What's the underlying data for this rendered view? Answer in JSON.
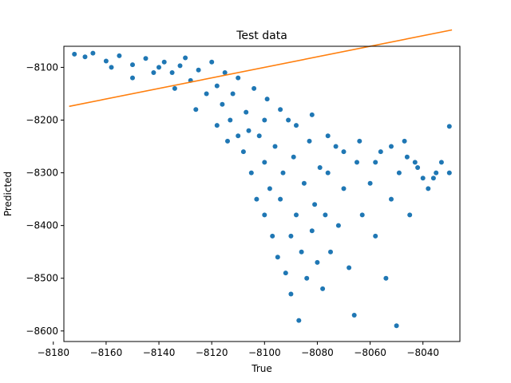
{
  "chart_data": {
    "type": "scatter",
    "title": "Test data",
    "xlabel": "True",
    "ylabel": "Predicted",
    "xlim": [
      -8176,
      -8026
    ],
    "ylim": [
      -8620,
      -8060
    ],
    "xticks": [
      -8180,
      -8160,
      -8140,
      -8120,
      -8100,
      -8080,
      -8060,
      -8040
    ],
    "yticks": [
      -8100,
      -8200,
      -8300,
      -8400,
      -8500,
      -8600
    ],
    "grid": false,
    "colors": {
      "points": "#1f77b4",
      "line": "#ff7f0e"
    },
    "series": [
      {
        "type": "scatter",
        "points": [
          [
            -8172,
            -8075
          ],
          [
            -8168,
            -8080
          ],
          [
            -8165,
            -8073
          ],
          [
            -8160,
            -8088
          ],
          [
            -8155,
            -8078
          ],
          [
            -8150,
            -8095
          ],
          [
            -8145,
            -8083
          ],
          [
            -8140,
            -8100
          ],
          [
            -8138,
            -8090
          ],
          [
            -8135,
            -8110
          ],
          [
            -8132,
            -8097
          ],
          [
            -8130,
            -8082
          ],
          [
            -8128,
            -8125
          ],
          [
            -8125,
            -8105
          ],
          [
            -8122,
            -8150
          ],
          [
            -8120,
            -8090
          ],
          [
            -8118,
            -8135
          ],
          [
            -8116,
            -8170
          ],
          [
            -8115,
            -8110
          ],
          [
            -8113,
            -8200
          ],
          [
            -8112,
            -8150
          ],
          [
            -8110,
            -8230
          ],
          [
            -8110,
            -8120
          ],
          [
            -8108,
            -8260
          ],
          [
            -8107,
            -8185
          ],
          [
            -8105,
            -8300
          ],
          [
            -8104,
            -8140
          ],
          [
            -8103,
            -8350
          ],
          [
            -8102,
            -8230
          ],
          [
            -8100,
            -8280
          ],
          [
            -8100,
            -8380
          ],
          [
            -8099,
            -8160
          ],
          [
            -8098,
            -8330
          ],
          [
            -8097,
            -8420
          ],
          [
            -8096,
            -8250
          ],
          [
            -8095,
            -8460
          ],
          [
            -8094,
            -8350
          ],
          [
            -8093,
            -8300
          ],
          [
            -8092,
            -8490
          ],
          [
            -8091,
            -8200
          ],
          [
            -8090,
            -8420
          ],
          [
            -8090,
            -8530
          ],
          [
            -8089,
            -8270
          ],
          [
            -8088,
            -8380
          ],
          [
            -8087,
            -8580
          ],
          [
            -8086,
            -8450
          ],
          [
            -8085,
            -8320
          ],
          [
            -8084,
            -8500
          ],
          [
            -8083,
            -8240
          ],
          [
            -8082,
            -8410
          ],
          [
            -8081,
            -8360
          ],
          [
            -8080,
            -8470
          ],
          [
            -8079,
            -8290
          ],
          [
            -8078,
            -8520
          ],
          [
            -8077,
            -8380
          ],
          [
            -8076,
            -8300
          ],
          [
            -8075,
            -8450
          ],
          [
            -8073,
            -8250
          ],
          [
            -8072,
            -8400
          ],
          [
            -8070,
            -8330
          ],
          [
            -8068,
            -8480
          ],
          [
            -8066,
            -8570
          ],
          [
            -8065,
            -8280
          ],
          [
            -8063,
            -8380
          ],
          [
            -8060,
            -8320
          ],
          [
            -8058,
            -8420
          ],
          [
            -8056,
            -8260
          ],
          [
            -8054,
            -8500
          ],
          [
            -8052,
            -8350
          ],
          [
            -8050,
            -8590
          ],
          [
            -8049,
            -8300
          ],
          [
            -8047,
            -8240
          ],
          [
            -8045,
            -8380
          ],
          [
            -8043,
            -8280
          ],
          [
            -8040,
            -8310
          ],
          [
            -8038,
            -8330
          ],
          [
            -8035,
            -8300
          ],
          [
            -8033,
            -8280
          ],
          [
            -8030,
            -8212
          ],
          [
            -8030,
            -8300
          ],
          [
            -8158,
            -8100
          ],
          [
            -8150,
            -8120
          ],
          [
            -8142,
            -8110
          ],
          [
            -8134,
            -8140
          ],
          [
            -8126,
            -8180
          ],
          [
            -8118,
            -8210
          ],
          [
            -8114,
            -8240
          ],
          [
            -8106,
            -8220
          ],
          [
            -8100,
            -8200
          ],
          [
            -8094,
            -8180
          ],
          [
            -8088,
            -8210
          ],
          [
            -8082,
            -8190
          ],
          [
            -8076,
            -8230
          ],
          [
            -8070,
            -8260
          ],
          [
            -8064,
            -8240
          ],
          [
            -8058,
            -8280
          ],
          [
            -8052,
            -8250
          ],
          [
            -8046,
            -8270
          ],
          [
            -8042,
            -8290
          ],
          [
            -8036,
            -8310
          ]
        ]
      },
      {
        "type": "line",
        "points": [
          [
            -8174,
            -8174
          ],
          [
            -8029,
            -8029
          ]
        ]
      }
    ]
  }
}
